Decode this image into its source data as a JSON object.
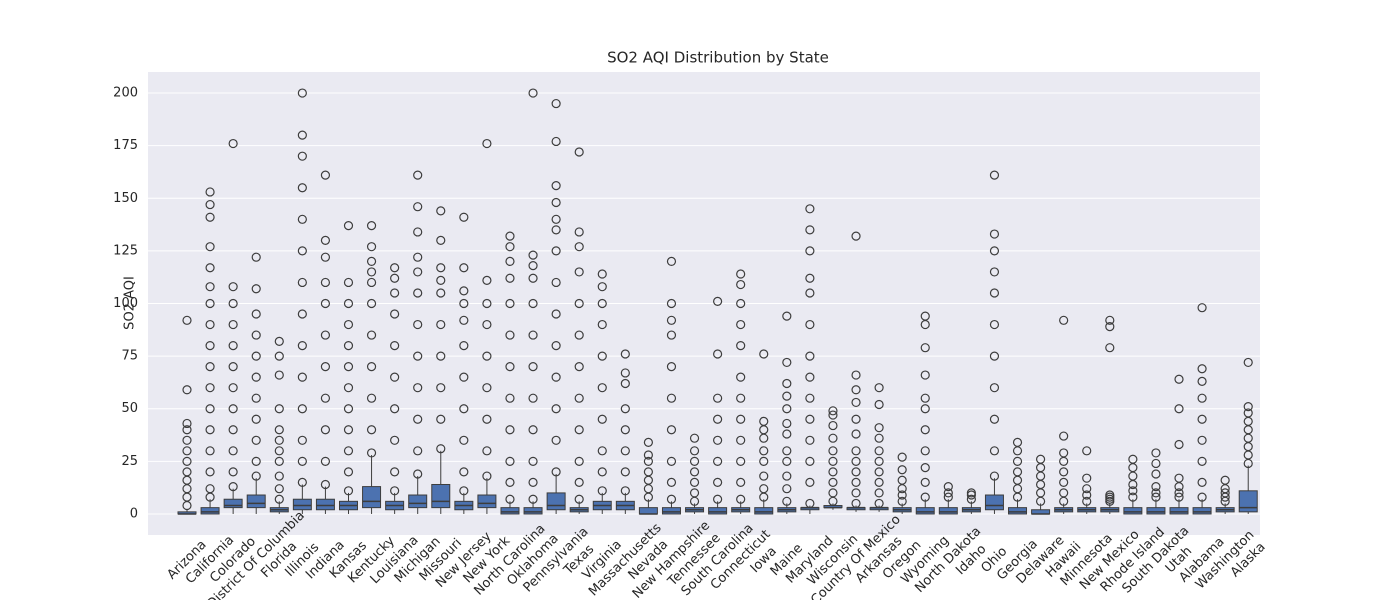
{
  "chart_data": {
    "type": "box",
    "title": "SO2 AQI Distribution by State",
    "ylabel": "SO2 AQI",
    "categories": [
      "Arizona",
      "California",
      "Colorado",
      "District Of Columbia",
      "Florida",
      "Illinois",
      "Indiana",
      "Kansas",
      "Kentucky",
      "Louisiana",
      "Michigan",
      "Missouri",
      "New Jersey",
      "New York",
      "North Carolina",
      "Oklahoma",
      "Pennsylvania",
      "Texas",
      "Virginia",
      "Massachusetts",
      "Nevada",
      "New Hampshire",
      "Tennessee",
      "South Carolina",
      "Connecticut",
      "Iowa",
      "Maine",
      "Maryland",
      "Wisconsin",
      "Country Of Mexico",
      "Arkansas",
      "Oregon",
      "Wyoming",
      "North Dakota",
      "Idaho",
      "Ohio",
      "Georgia",
      "Delaware",
      "Hawaii",
      "Minnesota",
      "New Mexico",
      "Rhode Island",
      "South Dakota",
      "Utah",
      "Alabama",
      "Washington",
      "Alaska"
    ],
    "q1": [
      0,
      0,
      3,
      3,
      1,
      2,
      2,
      2,
      3,
      2,
      3,
      3,
      2,
      3,
      0,
      0,
      2,
      1,
      2,
      2,
      0,
      0,
      1,
      0,
      1,
      0,
      1,
      2,
      3,
      2,
      2,
      1,
      0,
      0,
      1,
      2,
      0,
      0,
      1,
      1,
      1,
      0,
      0,
      0,
      0,
      1,
      1
    ],
    "median": [
      0,
      1,
      4,
      5,
      2,
      4,
      4,
      4,
      6,
      4,
      5,
      6,
      4,
      5,
      1,
      1,
      4,
      2,
      4,
      4,
      0,
      1,
      2,
      1,
      2,
      1,
      2,
      3,
      3,
      3,
      3,
      2,
      1,
      1,
      2,
      4,
      1,
      0,
      2,
      2,
      2,
      1,
      1,
      1,
      1,
      2,
      3
    ],
    "q3": [
      1,
      3,
      7,
      9,
      3,
      7,
      7,
      6,
      13,
      6,
      9,
      14,
      6,
      9,
      3,
      3,
      10,
      3,
      6,
      6,
      3,
      3,
      3,
      3,
      3,
      3,
      3,
      3,
      4,
      3,
      3,
      3,
      3,
      3,
      3,
      9,
      3,
      2,
      3,
      3,
      3,
      3,
      3,
      3,
      3,
      3,
      11
    ],
    "whislo": [
      0,
      0,
      0,
      0,
      0,
      0,
      0,
      0,
      0,
      0,
      0,
      0,
      0,
      0,
      0,
      0,
      0,
      0,
      0,
      0,
      0,
      0,
      0,
      0,
      0,
      0,
      0,
      0,
      2,
      1,
      1,
      0,
      0,
      0,
      0,
      0,
      0,
      0,
      0,
      0,
      0,
      0,
      0,
      0,
      0,
      0,
      0
    ],
    "whishi": [
      2,
      7,
      12,
      17,
      6,
      14,
      13,
      10,
      28,
      10,
      18,
      30,
      10,
      17,
      6,
      6,
      19,
      6,
      10,
      10,
      7,
      6,
      5,
      6,
      6,
      7,
      5,
      4,
      5,
      4,
      4,
      5,
      7,
      7,
      6,
      17,
      7,
      5,
      5,
      5,
      5,
      7,
      7,
      7,
      7,
      5,
      23
    ],
    "fliers": [
      [
        4,
        8,
        12,
        16,
        20,
        25,
        30,
        35,
        40,
        43,
        59,
        92
      ],
      [
        8,
        12,
        20,
        30,
        40,
        50,
        60,
        70,
        80,
        90,
        100,
        108,
        117,
        127,
        141,
        147,
        153
      ],
      [
        13,
        20,
        30,
        40,
        50,
        60,
        70,
        80,
        90,
        100,
        108,
        176
      ],
      [
        18,
        25,
        35,
        45,
        55,
        65,
        75,
        85,
        95,
        107,
        122
      ],
      [
        7,
        12,
        18,
        25,
        30,
        35,
        40,
        50,
        66,
        75,
        82
      ],
      [
        15,
        25,
        35,
        50,
        65,
        80,
        95,
        110,
        125,
        140,
        155,
        170,
        180,
        200
      ],
      [
        14,
        25,
        40,
        55,
        70,
        85,
        100,
        110,
        122,
        130,
        161
      ],
      [
        11,
        20,
        30,
        40,
        50,
        60,
        70,
        80,
        90,
        100,
        110,
        137
      ],
      [
        29,
        40,
        55,
        70,
        85,
        100,
        110,
        115,
        120,
        127,
        137
      ],
      [
        11,
        20,
        35,
        50,
        65,
        80,
        95,
        105,
        112,
        117
      ],
      [
        19,
        30,
        45,
        60,
        75,
        90,
        105,
        115,
        122,
        134,
        146,
        161
      ],
      [
        31,
        45,
        60,
        75,
        90,
        105,
        111,
        117,
        130,
        144
      ],
      [
        11,
        20,
        35,
        50,
        65,
        80,
        92,
        100,
        106,
        117,
        141
      ],
      [
        18,
        30,
        45,
        60,
        75,
        90,
        100,
        111,
        176
      ],
      [
        7,
        15,
        25,
        40,
        55,
        70,
        85,
        100,
        112,
        120,
        127,
        132
      ],
      [
        7,
        15,
        25,
        40,
        55,
        70,
        85,
        100,
        112,
        118,
        123,
        200
      ],
      [
        20,
        35,
        50,
        65,
        80,
        95,
        110,
        125,
        135,
        140,
        148,
        156,
        177,
        195
      ],
      [
        7,
        15,
        25,
        40,
        55,
        70,
        85,
        100,
        115,
        127,
        134,
        172
      ],
      [
        11,
        20,
        30,
        45,
        60,
        75,
        90,
        100,
        108,
        114
      ],
      [
        11,
        20,
        30,
        40,
        50,
        62,
        67,
        76
      ],
      [
        8,
        12,
        16,
        20,
        25,
        28,
        34
      ],
      [
        7,
        15,
        25,
        40,
        55,
        70,
        85,
        92,
        100,
        120
      ],
      [
        6,
        10,
        15,
        20,
        25,
        30,
        36
      ],
      [
        7,
        15,
        25,
        35,
        45,
        55,
        76,
        101
      ],
      [
        7,
        15,
        25,
        35,
        45,
        55,
        65,
        80,
        90,
        100,
        109,
        114
      ],
      [
        8,
        12,
        18,
        25,
        30,
        36,
        40,
        44,
        76
      ],
      [
        6,
        12,
        18,
        25,
        30,
        38,
        43,
        50,
        56,
        62,
        72,
        94
      ],
      [
        5,
        15,
        25,
        35,
        45,
        55,
        65,
        75,
        90,
        105,
        112,
        125,
        135,
        145
      ],
      [
        6,
        10,
        15,
        20,
        25,
        30,
        36,
        42,
        47,
        49
      ],
      [
        5,
        10,
        15,
        20,
        25,
        30,
        38,
        45,
        53,
        59,
        66,
        132
      ],
      [
        5,
        10,
        15,
        20,
        25,
        30,
        36,
        41,
        52,
        60
      ],
      [
        6,
        9,
        12,
        16,
        21,
        27
      ],
      [
        8,
        15,
        22,
        30,
        40,
        50,
        55,
        66,
        79,
        90,
        94
      ],
      [
        8,
        10,
        13
      ],
      [
        7,
        9,
        10
      ],
      [
        18,
        30,
        45,
        60,
        75,
        90,
        105,
        115,
        125,
        133,
        161
      ],
      [
        8,
        12,
        16,
        20,
        25,
        30,
        34
      ],
      [
        6,
        10,
        14,
        18,
        22,
        26
      ],
      [
        6,
        10,
        15,
        20,
        25,
        29,
        37,
        92
      ],
      [
        6,
        9,
        12,
        17,
        30
      ],
      [
        6,
        7,
        8,
        9,
        79,
        89,
        92
      ],
      [
        8,
        11,
        14,
        18,
        22,
        26
      ],
      [
        8,
        10,
        13,
        19,
        24,
        29
      ],
      [
        8,
        10,
        13,
        17,
        33,
        50,
        64
      ],
      [
        8,
        15,
        25,
        35,
        45,
        55,
        63,
        69,
        98
      ],
      [
        6,
        8,
        10,
        12,
        16
      ],
      [
        24,
        28,
        32,
        36,
        40,
        44,
        48,
        51,
        72
      ]
    ],
    "color": "#4c72b0",
    "ylim": [
      -10,
      210
    ],
    "yticks": [
      0,
      25,
      50,
      75,
      100,
      125,
      150,
      175,
      200
    ],
    "grid": true
  }
}
